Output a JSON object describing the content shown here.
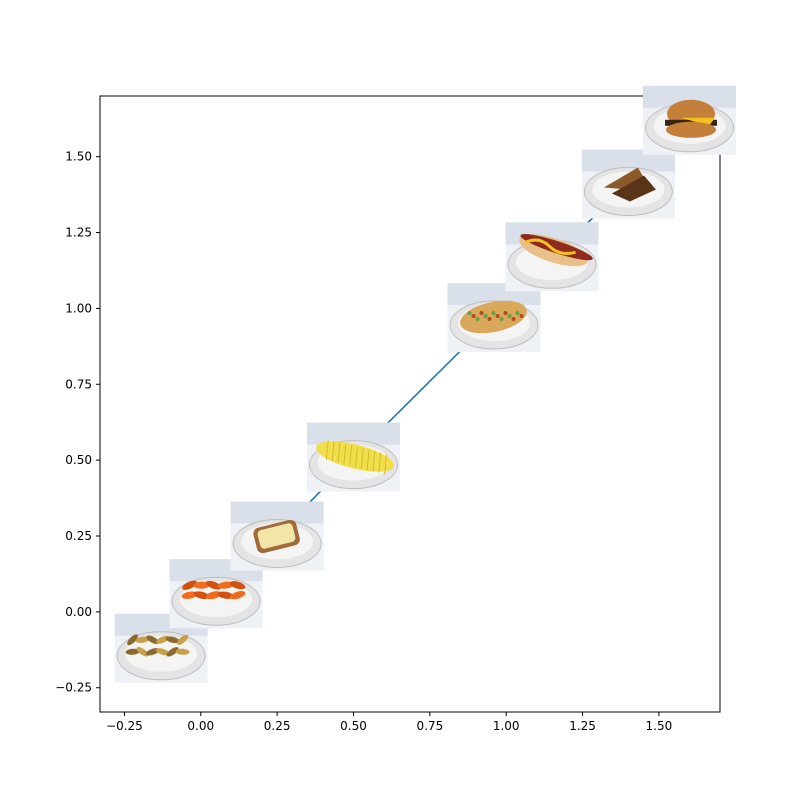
{
  "chart_data": {
    "type": "line",
    "title": "",
    "xlabel": "",
    "ylabel": "",
    "xlim": [
      -0.33,
      1.7
    ],
    "ylim": [
      -0.33,
      1.7
    ],
    "xticks": [
      -0.25,
      0.0,
      0.25,
      0.5,
      0.75,
      1.0,
      1.25,
      1.5
    ],
    "xtick_labels": [
      "−0.25",
      "0.00",
      "0.25",
      "0.50",
      "0.75",
      "1.00",
      "1.25",
      "1.50"
    ],
    "yticks": [
      -0.25,
      0.0,
      0.25,
      0.5,
      0.75,
      1.0,
      1.25,
      1.5
    ],
    "ytick_labels": [
      "−0.25",
      "0.00",
      "0.25",
      "0.50",
      "0.75",
      "1.00",
      "1.25",
      "1.50"
    ],
    "grid": false,
    "line_color": "#1f77b4",
    "series": [
      {
        "x": [
          -0.13,
          0.05,
          0.25,
          0.5,
          0.96,
          1.15,
          1.4,
          1.6
        ],
        "y": [
          -0.12,
          0.06,
          0.25,
          0.51,
          0.97,
          1.17,
          1.41,
          1.62
        ]
      }
    ],
    "markers": [
      {
        "x": -0.13,
        "y": -0.12,
        "icon": "fried-food-plate-icon",
        "plate": "#dcdcdc",
        "food": "#c8a04a",
        "accent": "#8b6a2b"
      },
      {
        "x": 0.05,
        "y": 0.06,
        "icon": "carrots-plate-icon",
        "plate": "#dcdcdc",
        "food": "#f26a1b",
        "accent": "#d4500f"
      },
      {
        "x": 0.25,
        "y": 0.25,
        "icon": "bread-plate-icon",
        "plate": "#dcdcdc",
        "food": "#a06a3a",
        "accent": "#f1e6a8"
      },
      {
        "x": 0.5,
        "y": 0.51,
        "icon": "corn-plate-icon",
        "plate": "#dcdcdc",
        "food": "#f1de4a",
        "accent": "#c9b526"
      },
      {
        "x": 0.96,
        "y": 0.97,
        "icon": "taco-plate-icon",
        "plate": "#dcdcdc",
        "food": "#d9a85a",
        "accent": "#b24a24"
      },
      {
        "x": 1.15,
        "y": 1.17,
        "icon": "hotdog-plate-icon",
        "plate": "#dcdcdc",
        "food": "#e8c08a",
        "accent": "#8e2a1e"
      },
      {
        "x": 1.4,
        "y": 1.41,
        "icon": "toast-plate-icon",
        "plate": "#dcdcdc",
        "food": "#8a5a2a",
        "accent": "#5a3416"
      },
      {
        "x": 1.6,
        "y": 1.62,
        "icon": "burger-plate-icon",
        "plate": "#dcdcdc",
        "food": "#c47f3a",
        "accent": "#f4c21a"
      }
    ]
  }
}
